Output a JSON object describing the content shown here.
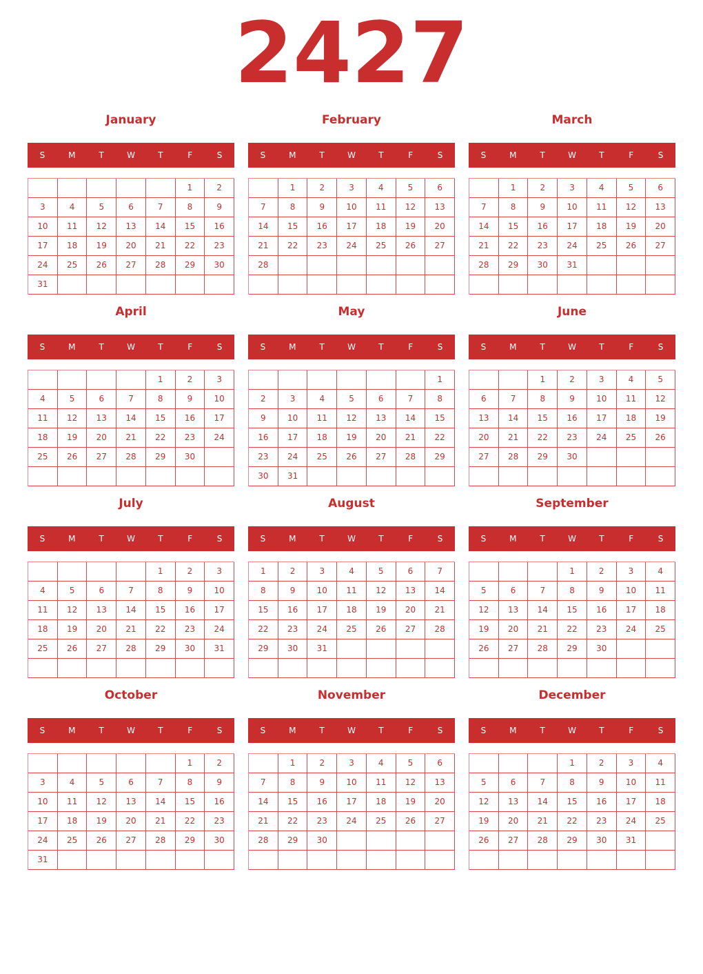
{
  "year": "2427",
  "weekdays": [
    "S",
    "M",
    "T",
    "W",
    "T",
    "F",
    "S"
  ],
  "colors": {
    "accent": "#c92e2f"
  },
  "months": [
    {
      "name": "January",
      "weeks": [
        [
          "",
          "",
          "",
          "",
          "",
          "1",
          "2"
        ],
        [
          "3",
          "4",
          "5",
          "6",
          "7",
          "8",
          "9"
        ],
        [
          "10",
          "11",
          "12",
          "13",
          "14",
          "15",
          "16"
        ],
        [
          "17",
          "18",
          "19",
          "20",
          "21",
          "22",
          "23"
        ],
        [
          "24",
          "25",
          "26",
          "27",
          "28",
          "29",
          "30"
        ],
        [
          "31",
          "",
          "",
          "",
          "",
          "",
          ""
        ]
      ]
    },
    {
      "name": "February",
      "weeks": [
        [
          "",
          "1",
          "2",
          "3",
          "4",
          "5",
          "6"
        ],
        [
          "7",
          "8",
          "9",
          "10",
          "11",
          "12",
          "13"
        ],
        [
          "14",
          "15",
          "16",
          "17",
          "18",
          "19",
          "20"
        ],
        [
          "21",
          "22",
          "23",
          "24",
          "25",
          "26",
          "27"
        ],
        [
          "28",
          "",
          "",
          "",
          "",
          "",
          ""
        ],
        [
          "",
          "",
          "",
          "",
          "",
          "",
          ""
        ]
      ]
    },
    {
      "name": "March",
      "weeks": [
        [
          "",
          "1",
          "2",
          "3",
          "4",
          "5",
          "6"
        ],
        [
          "7",
          "8",
          "9",
          "10",
          "11",
          "12",
          "13"
        ],
        [
          "14",
          "15",
          "16",
          "17",
          "18",
          "19",
          "20"
        ],
        [
          "21",
          "22",
          "23",
          "24",
          "25",
          "26",
          "27"
        ],
        [
          "28",
          "29",
          "30",
          "31",
          "",
          "",
          ""
        ],
        [
          "",
          "",
          "",
          "",
          "",
          "",
          ""
        ]
      ]
    },
    {
      "name": "April",
      "weeks": [
        [
          "",
          "",
          "",
          "",
          "1",
          "2",
          "3"
        ],
        [
          "4",
          "5",
          "6",
          "7",
          "8",
          "9",
          "10"
        ],
        [
          "11",
          "12",
          "13",
          "14",
          "15",
          "16",
          "17"
        ],
        [
          "18",
          "19",
          "20",
          "21",
          "22",
          "23",
          "24"
        ],
        [
          "25",
          "26",
          "27",
          "28",
          "29",
          "30",
          ""
        ],
        [
          "",
          "",
          "",
          "",
          "",
          "",
          ""
        ]
      ]
    },
    {
      "name": "May",
      "weeks": [
        [
          "",
          "",
          "",
          "",
          "",
          "",
          "1"
        ],
        [
          "2",
          "3",
          "4",
          "5",
          "6",
          "7",
          "8"
        ],
        [
          "9",
          "10",
          "11",
          "12",
          "13",
          "14",
          "15"
        ],
        [
          "16",
          "17",
          "18",
          "19",
          "20",
          "21",
          "22"
        ],
        [
          "23",
          "24",
          "25",
          "26",
          "27",
          "28",
          "29"
        ],
        [
          "30",
          "31",
          "",
          "",
          "",
          "",
          ""
        ]
      ]
    },
    {
      "name": "June",
      "weeks": [
        [
          "",
          "",
          "1",
          "2",
          "3",
          "4",
          "5"
        ],
        [
          "6",
          "7",
          "8",
          "9",
          "10",
          "11",
          "12"
        ],
        [
          "13",
          "14",
          "15",
          "16",
          "17",
          "18",
          "19"
        ],
        [
          "20",
          "21",
          "22",
          "23",
          "24",
          "25",
          "26"
        ],
        [
          "27",
          "28",
          "29",
          "30",
          "",
          "",
          ""
        ],
        [
          "",
          "",
          "",
          "",
          "",
          "",
          ""
        ]
      ]
    },
    {
      "name": "July",
      "weeks": [
        [
          "",
          "",
          "",
          "",
          "1",
          "2",
          "3"
        ],
        [
          "4",
          "5",
          "6",
          "7",
          "8",
          "9",
          "10"
        ],
        [
          "11",
          "12",
          "13",
          "14",
          "15",
          "16",
          "17"
        ],
        [
          "18",
          "19",
          "20",
          "21",
          "22",
          "23",
          "24"
        ],
        [
          "25",
          "26",
          "27",
          "28",
          "29",
          "30",
          "31"
        ],
        [
          "",
          "",
          "",
          "",
          "",
          "",
          ""
        ]
      ]
    },
    {
      "name": "August",
      "weeks": [
        [
          "1",
          "2",
          "3",
          "4",
          "5",
          "6",
          "7"
        ],
        [
          "8",
          "9",
          "10",
          "11",
          "12",
          "13",
          "14"
        ],
        [
          "15",
          "16",
          "17",
          "18",
          "19",
          "20",
          "21"
        ],
        [
          "22",
          "23",
          "24",
          "25",
          "26",
          "27",
          "28"
        ],
        [
          "29",
          "30",
          "31",
          "",
          "",
          "",
          ""
        ],
        [
          "",
          "",
          "",
          "",
          "",
          "",
          ""
        ]
      ]
    },
    {
      "name": "September",
      "weeks": [
        [
          "",
          "",
          "",
          "1",
          "2",
          "3",
          "4"
        ],
        [
          "5",
          "6",
          "7",
          "8",
          "9",
          "10",
          "11"
        ],
        [
          "12",
          "13",
          "14",
          "15",
          "16",
          "17",
          "18"
        ],
        [
          "19",
          "20",
          "21",
          "22",
          "23",
          "24",
          "25"
        ],
        [
          "26",
          "27",
          "28",
          "29",
          "30",
          "",
          ""
        ],
        [
          "",
          "",
          "",
          "",
          "",
          "",
          ""
        ]
      ]
    },
    {
      "name": "October",
      "weeks": [
        [
          "",
          "",
          "",
          "",
          "",
          "1",
          "2"
        ],
        [
          "3",
          "4",
          "5",
          "6",
          "7",
          "8",
          "9"
        ],
        [
          "10",
          "11",
          "12",
          "13",
          "14",
          "15",
          "16"
        ],
        [
          "17",
          "18",
          "19",
          "20",
          "21",
          "22",
          "23"
        ],
        [
          "24",
          "25",
          "26",
          "27",
          "28",
          "29",
          "30"
        ],
        [
          "31",
          "",
          "",
          "",
          "",
          "",
          ""
        ]
      ]
    },
    {
      "name": "November",
      "weeks": [
        [
          "",
          "1",
          "2",
          "3",
          "4",
          "5",
          "6"
        ],
        [
          "7",
          "8",
          "9",
          "10",
          "11",
          "12",
          "13"
        ],
        [
          "14",
          "15",
          "16",
          "17",
          "18",
          "19",
          "20"
        ],
        [
          "21",
          "22",
          "23",
          "24",
          "25",
          "26",
          "27"
        ],
        [
          "28",
          "29",
          "30",
          "",
          "",
          "",
          ""
        ],
        [
          "",
          "",
          "",
          "",
          "",
          "",
          ""
        ]
      ]
    },
    {
      "name": "December",
      "weeks": [
        [
          "",
          "",
          "",
          "1",
          "2",
          "3",
          "4"
        ],
        [
          "5",
          "6",
          "7",
          "8",
          "9",
          "10",
          "11"
        ],
        [
          "12",
          "13",
          "14",
          "15",
          "16",
          "17",
          "18"
        ],
        [
          "19",
          "20",
          "21",
          "22",
          "23",
          "24",
          "25"
        ],
        [
          "26",
          "27",
          "28",
          "29",
          "30",
          "31",
          ""
        ],
        [
          "",
          "",
          "",
          "",
          "",
          "",
          ""
        ]
      ]
    }
  ]
}
